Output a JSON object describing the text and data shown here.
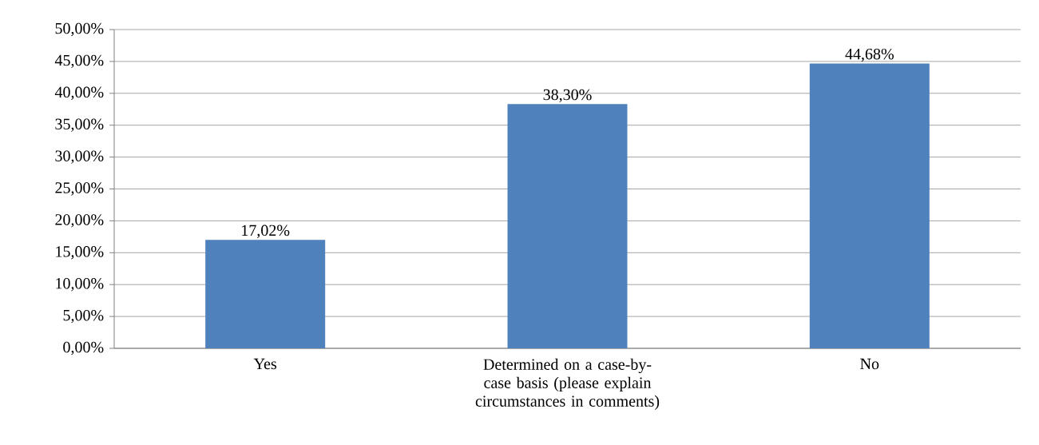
{
  "chart_data": {
    "type": "bar",
    "categories": [
      "Yes",
      "Determined on a case-by-case basis (please explain circumstances in comments)",
      "No"
    ],
    "values": [
      17.02,
      38.3,
      44.68
    ],
    "value_labels": [
      "17,02%",
      "38,30%",
      "44,68%"
    ],
    "color": "#4f81bd",
    "ylim": [
      0,
      50
    ],
    "yticks": [
      {
        "value": 0,
        "label": "0,00%"
      },
      {
        "value": 5,
        "label": "5,00%"
      },
      {
        "value": 10,
        "label": "10,00%"
      },
      {
        "value": 15,
        "label": "15,00%"
      },
      {
        "value": 20,
        "label": "20,00%"
      },
      {
        "value": 25,
        "label": "25,00%"
      },
      {
        "value": 30,
        "label": "30,00%"
      },
      {
        "value": 35,
        "label": "35,00%"
      },
      {
        "value": 40,
        "label": "40,00%"
      },
      {
        "value": 45,
        "label": "45,00%"
      },
      {
        "value": 50,
        "label": "50,00%"
      }
    ],
    "grid": "y"
  }
}
